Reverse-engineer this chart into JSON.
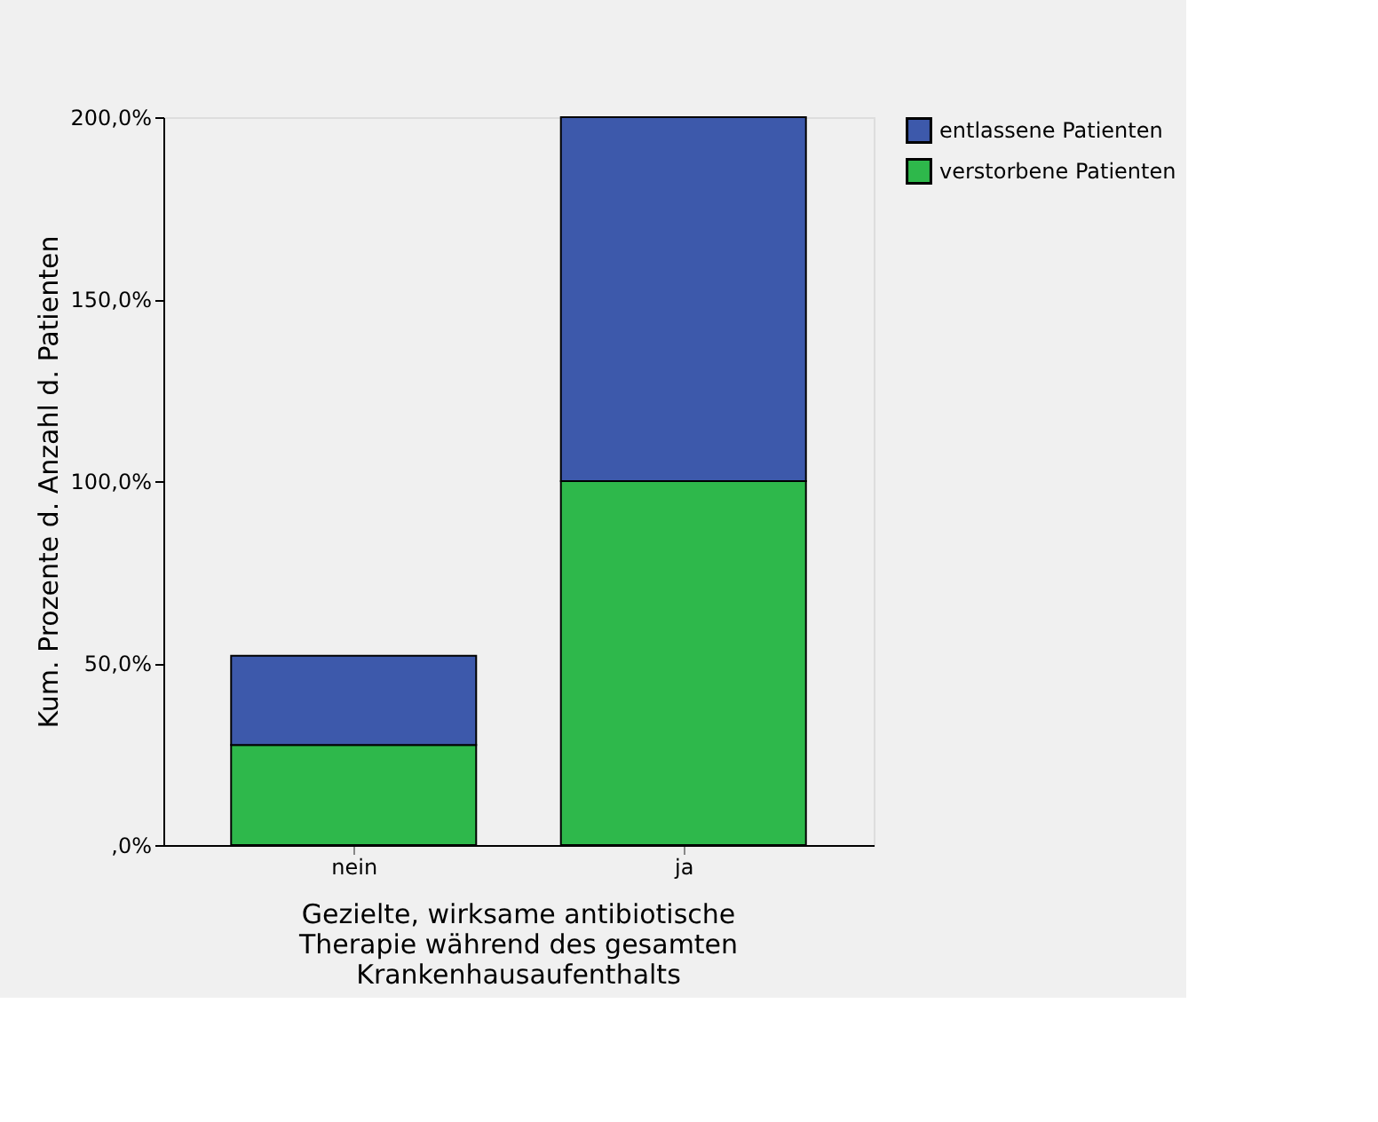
{
  "chart_data": {
    "type": "bar",
    "stacked": true,
    "xlabel": "Gezielte, wirksame antibiotische Therapie während des gesamten Krankenhausaufenthalts",
    "ylabel": "Kum. Prozente d. Anzahl d. Patienten",
    "categories": [
      "nein",
      "ja"
    ],
    "series": [
      {
        "name": "verstorbene Patienten",
        "color": "#2eb84b",
        "values": [
          27.5,
          100
        ]
      },
      {
        "name": "entlassene Patienten",
        "color": "#3d59ab",
        "values": [
          24.5,
          100
        ]
      }
    ],
    "ylim": [
      0,
      200
    ],
    "yticks": [
      {
        "value": 0,
        "label": ",0%"
      },
      {
        "value": 50,
        "label": "50,0%"
      },
      {
        "value": 100,
        "label": "100,0%"
      },
      {
        "value": 150,
        "label": "150,0%"
      },
      {
        "value": 200,
        "label": "200,0%"
      }
    ],
    "grid": false,
    "legend": "top right"
  }
}
